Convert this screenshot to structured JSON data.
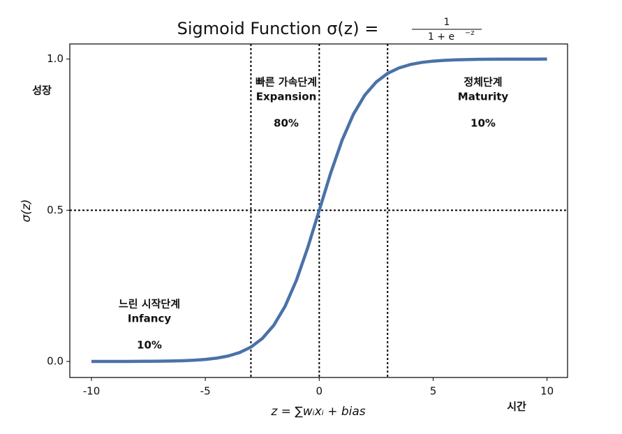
{
  "chart_data": {
    "type": "line",
    "title": "Sigmoid Function σ(z) =",
    "title_fraction_numerator": "1",
    "title_fraction_denominator": "1 + e",
    "title_fraction_exponent": "−z",
    "x_label": "z = ∑wᵢxᵢ + bias",
    "y_label": "σ(z)",
    "y_side_label": "성장",
    "x_side_label": "시간",
    "x": [
      -10,
      -9.5,
      -9,
      -8.5,
      -8,
      -7.5,
      -7,
      -6.5,
      -6,
      -5.5,
      -5,
      -4.5,
      -4,
      -3.5,
      -3,
      -2.5,
      -2,
      -1.5,
      -1,
      -0.5,
      0,
      0.5,
      1,
      1.5,
      2,
      2.5,
      3,
      3.5,
      4,
      4.5,
      5,
      5.5,
      6,
      6.5,
      7,
      7.5,
      8,
      8.5,
      9,
      9.5,
      10
    ],
    "series": [
      {
        "name": "sigmoid",
        "color": "#4a72a8",
        "values": [
          0.0,
          0.0001,
          0.0001,
          0.0002,
          0.0003,
          0.0006,
          0.0009,
          0.0015,
          0.0025,
          0.0041,
          0.0067,
          0.011,
          0.018,
          0.0293,
          0.0474,
          0.0759,
          0.1192,
          0.1824,
          0.2689,
          0.3775,
          0.5,
          0.6225,
          0.7311,
          0.8176,
          0.8808,
          0.9241,
          0.9526,
          0.9707,
          0.982,
          0.989,
          0.9933,
          0.9959,
          0.9975,
          0.9985,
          0.9991,
          0.9994,
          0.9997,
          0.9998,
          0.9999,
          0.9999,
          1.0
        ]
      }
    ],
    "xlim": [
      -10.95,
      10.9
    ],
    "ylim": [
      -0.053,
      1.05
    ],
    "xticks": [
      -10,
      -5,
      0,
      5,
      10
    ],
    "yticks": [
      {
        "value": 0,
        "label": "0.0"
      },
      0.5,
      {
        "value": 1,
        "label": "1.0"
      }
    ],
    "vlines": [
      -3,
      0,
      3
    ],
    "hlines": [
      0.5
    ],
    "annotations": [
      {
        "lines": [
          "느린 시작단계",
          "Infancy",
          "10%"
        ]
      },
      {
        "lines": [
          "빠른 가속단계",
          "Expansion",
          "80%"
        ]
      },
      {
        "lines": [
          "정체단계",
          "Maturity",
          "10%"
        ]
      }
    ]
  }
}
